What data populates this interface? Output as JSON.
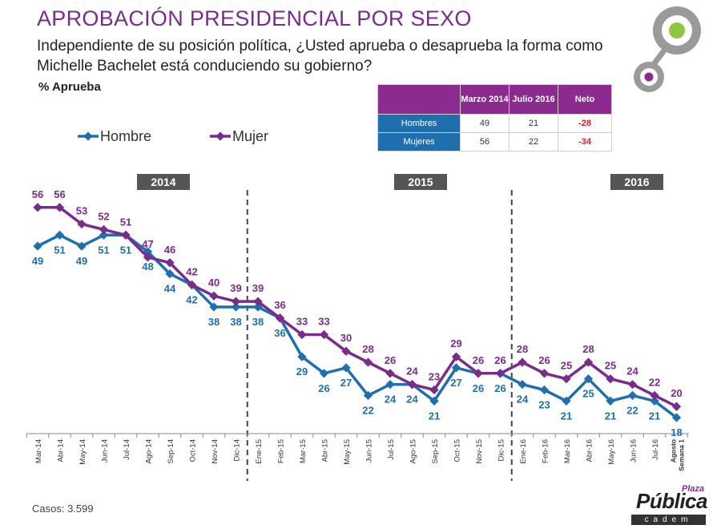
{
  "title": "APROBACIÓN PRESIDENCIAL POR SEXO",
  "question": "Independiente de su posición política, ¿Usted aprueba o desaprueba la forma como Michelle Bachelet está conduciendo su gobierno?",
  "metric_label": "% Aprueba",
  "footer_cases": "Casos: 3.599",
  "brand": {
    "plaza": "Plaza",
    "publica": "Pública",
    "cadem": "cadem"
  },
  "summary_table": {
    "headers": [
      "",
      "Marzo 2014",
      "Julio 2016",
      "Neto"
    ],
    "rows": [
      {
        "label": "Hombres",
        "mar2014": "49",
        "jul2016": "21",
        "neto": "-28"
      },
      {
        "label": "Mujeres",
        "mar2014": "56",
        "jul2016": "22",
        "neto": "-34"
      }
    ]
  },
  "colors": {
    "hombre": "#1f6fb0",
    "mujer": "#7a2c8a",
    "title": "#7a2c8a",
    "year_box": "#555555",
    "neto": "#d81f26"
  },
  "chart_data": {
    "type": "line",
    "categories": [
      "Mar-14",
      "Abr-14",
      "May-14",
      "Jun-14",
      "Jul-14",
      "Ago-14",
      "Sep-14",
      "Oct-14",
      "Nov-14",
      "Dic-14",
      "Ene-15",
      "Feb-15",
      "Mar-15",
      "Abr-15",
      "May-15",
      "Jun-15",
      "Jul-15",
      "Ago-15",
      "Sep-15",
      "Oct-15",
      "Nov-15",
      "Dic-15",
      "Ene-16",
      "Feb-16",
      "Mar-16",
      "Abr-16",
      "May-16",
      "Jun-16",
      "Jul-16",
      "Agosto Semana 1"
    ],
    "series": [
      {
        "name": "Hombre",
        "color": "#1f6fb0",
        "values": [
          49,
          51,
          49,
          51,
          51,
          48,
          44,
          42,
          38,
          38,
          38,
          36,
          29,
          26,
          27,
          22,
          24,
          24,
          21,
          27,
          26,
          26,
          24,
          23,
          21,
          25,
          21,
          22,
          21,
          18
        ]
      },
      {
        "name": "Mujer",
        "color": "#7a2c8a",
        "values": [
          56,
          56,
          53,
          52,
          51,
          47,
          46,
          42,
          40,
          39,
          39,
          36,
          33,
          33,
          30,
          28,
          26,
          24,
          23,
          29,
          26,
          26,
          28,
          26,
          25,
          28,
          25,
          24,
          22,
          20
        ]
      }
    ],
    "year_labels": [
      {
        "label": "2014",
        "first_index": 0,
        "last_index": 9
      },
      {
        "label": "2015",
        "first_index": 10,
        "last_index": 21
      },
      {
        "label": "2016",
        "first_index": 22,
        "last_index": 29
      }
    ],
    "dividers_before_index": [
      10,
      22
    ],
    "legend": "top-left",
    "grid": false
  }
}
